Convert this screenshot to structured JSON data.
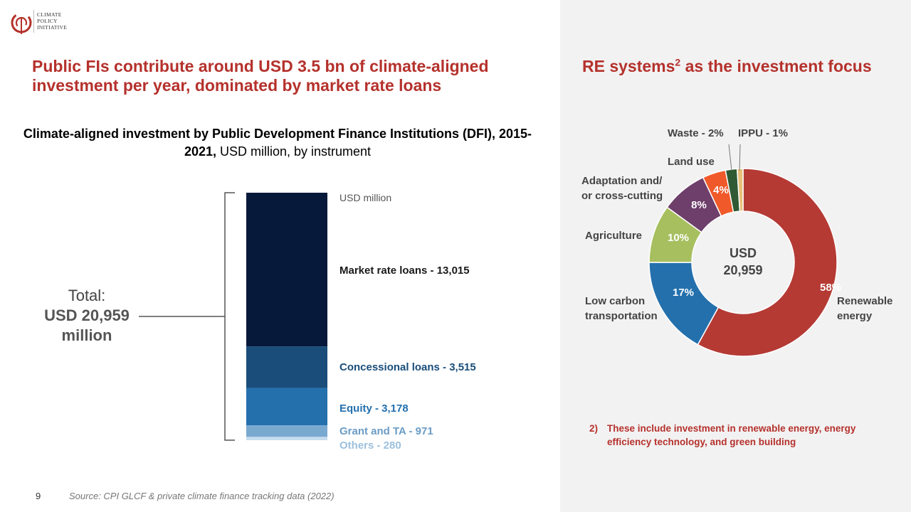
{
  "logo": {
    "lines": [
      "CLIMATE",
      "POLICY",
      "INITIATIVE"
    ],
    "color": "#b5312c"
  },
  "header": {
    "title": "Public FIs contribute around USD 3.5 bn of climate-aligned investment per year, dominated by market rate loans",
    "right_title_main": "RE systems",
    "right_title_sup": "2",
    "right_title_rest": " as the investment focus"
  },
  "left_chart": {
    "title_bold": "Climate-aligned investment by Public Development Finance Institutions (DFI), 2015-2021,",
    "title_light": " USD million, by instrument",
    "total_line1": "Total:",
    "total_line2": "USD 20,959",
    "total_line3": "million"
  },
  "right_chart": {
    "center_line1": "USD",
    "center_line2": "20,959"
  },
  "chart_data": [
    {
      "type": "bar",
      "stacked": true,
      "unit_label": "USD million",
      "total": 20959,
      "segments": [
        {
          "label": "Market rate loans - 13,015",
          "value": 13015,
          "color": "#06193a",
          "label_color": "#1a1a1a"
        },
        {
          "label": "Concessional loans - 3,515",
          "value": 3515,
          "color": "#1a4d7a",
          "label_color": "#1a4d7a"
        },
        {
          "label": "Equity - 3,178",
          "value": 3178,
          "color": "#2470ad",
          "label_color": "#2470ad"
        },
        {
          "label": "Grant and TA - 971",
          "value": 971,
          "color": "#7aa9d0",
          "label_color": "#6b9cc6"
        },
        {
          "label": "Others - 280",
          "value": 280,
          "color": "#c6dcee",
          "label_color": "#9cc0de"
        }
      ]
    },
    {
      "type": "pie",
      "donut": true,
      "center_label": "USD 20,959",
      "slices": [
        {
          "name": "Renewable energy",
          "label_lines": [
            "Renewable",
            "energy"
          ],
          "value": 58,
          "pct_label": "58%",
          "color": "#b53a34"
        },
        {
          "name": "Low carbon transportation",
          "label_lines": [
            "Low carbon",
            "transportation"
          ],
          "value": 17,
          "pct_label": "17%",
          "color": "#2470ad"
        },
        {
          "name": "Agriculture",
          "label_lines": [
            "Agriculture"
          ],
          "value": 10,
          "pct_label": "10%",
          "color": "#a7bf5f"
        },
        {
          "name": "Adaptation and/ or cross-cutting",
          "label_lines": [
            "Adaptation and/",
            "or cross-cutting"
          ],
          "value": 8,
          "pct_label": "8%",
          "color": "#6e3f6b"
        },
        {
          "name": "Land use",
          "label_lines": [
            "Land use"
          ],
          "value": 4,
          "pct_label": "4%",
          "color": "#f05a2a"
        },
        {
          "name": "Waste",
          "label_lines": [
            "Waste - 2%"
          ],
          "value": 2,
          "pct_label": "",
          "color": "#2f5a33"
        },
        {
          "name": "IPPU",
          "label_lines": [
            "IPPU - 1%"
          ],
          "value": 1,
          "pct_label": "",
          "color": "#e8c07a"
        }
      ]
    }
  ],
  "note": {
    "number": "2)",
    "text": "These include investment in renewable energy, energy efficiency technology, and green building"
  },
  "footer": {
    "page_number": "9",
    "source": "Source: CPI GLCF & private climate finance tracking data (2022)"
  }
}
